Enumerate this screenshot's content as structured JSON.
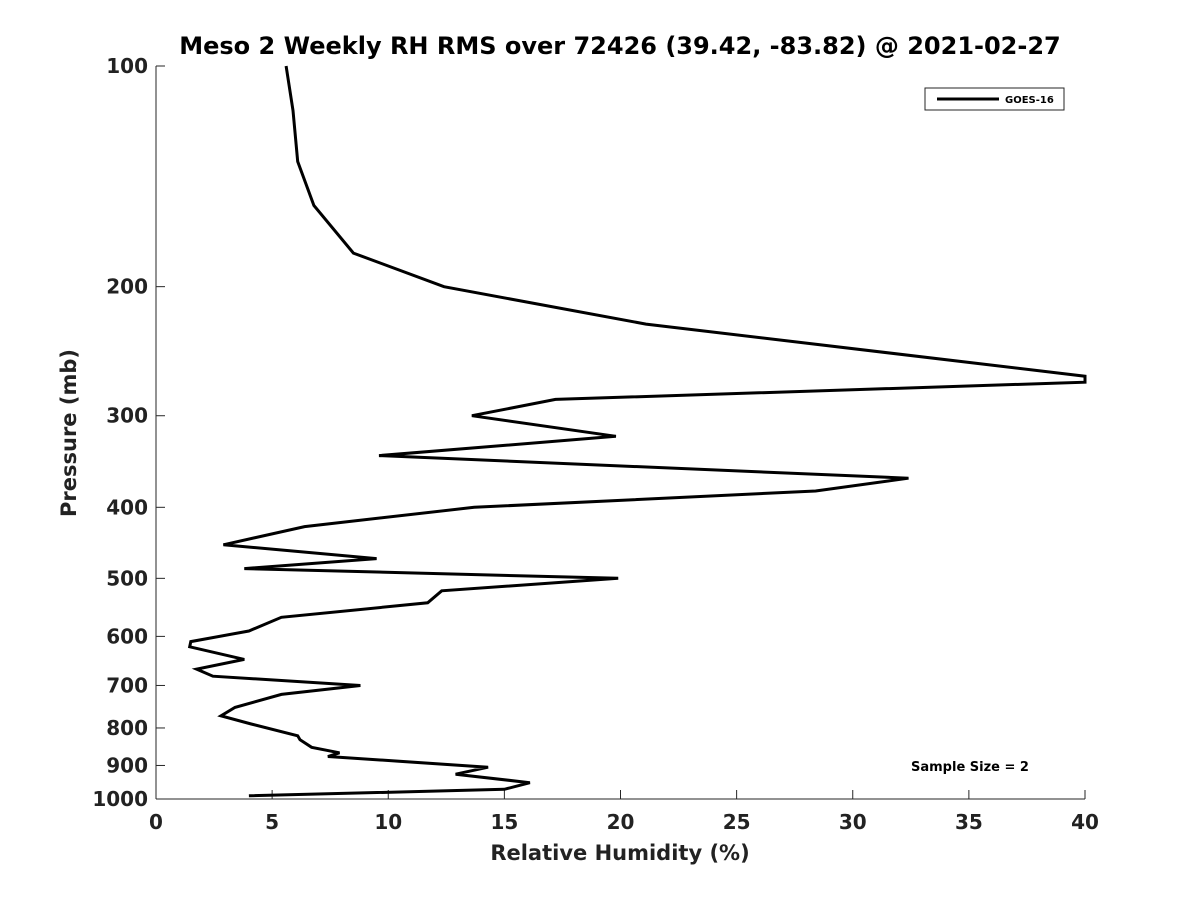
{
  "chart_data": {
    "type": "line",
    "title": "Meso 2 Weekly RH RMS over 72426 (39.42, -83.82) @ 2021-02-27",
    "xlabel": "Relative Humidity (%)",
    "ylabel": "Pressure (mb)",
    "xlim": [
      0,
      40
    ],
    "ylim": [
      1000,
      100
    ],
    "y_scale": "log",
    "y_inverted": true,
    "x_ticks": [
      "0",
      "5",
      "10",
      "15",
      "20",
      "25",
      "30",
      "35",
      "40"
    ],
    "y_ticks": [
      "100",
      "200",
      "300",
      "400",
      "500",
      "600",
      "700",
      "800",
      "900",
      "1000"
    ],
    "legend_position": "top-right",
    "annotation": "Sample Size = 2",
    "series": [
      {
        "name": "GOES-16",
        "color": "#000000",
        "x": [
          5.6,
          5.9,
          6.1,
          6.8,
          8.5,
          12.4,
          21.1,
          40.0,
          40.0,
          17.2,
          13.6,
          19.8,
          9.6,
          32.4,
          28.4,
          13.7,
          6.4,
          2.9,
          9.5,
          3.8,
          19.9,
          12.3,
          11.7,
          5.4,
          4.0,
          1.5,
          1.45,
          3.8,
          1.75,
          2.45,
          8.8,
          5.4,
          3.4,
          2.8,
          4.1,
          6.1,
          6.2,
          6.7,
          7.9,
          7.4,
          14.3,
          12.9,
          16.1,
          15.0,
          4.0
        ],
        "y": [
          100,
          115,
          135,
          155,
          180,
          200,
          225,
          265,
          270,
          285,
          300,
          320,
          340,
          365,
          380,
          400,
          425,
          450,
          470,
          485,
          500,
          520,
          540,
          565,
          590,
          610,
          620,
          645,
          665,
          680,
          700,
          720,
          750,
          770,
          790,
          820,
          830,
          850,
          865,
          875,
          905,
          925,
          950,
          970,
          990
        ]
      }
    ]
  }
}
